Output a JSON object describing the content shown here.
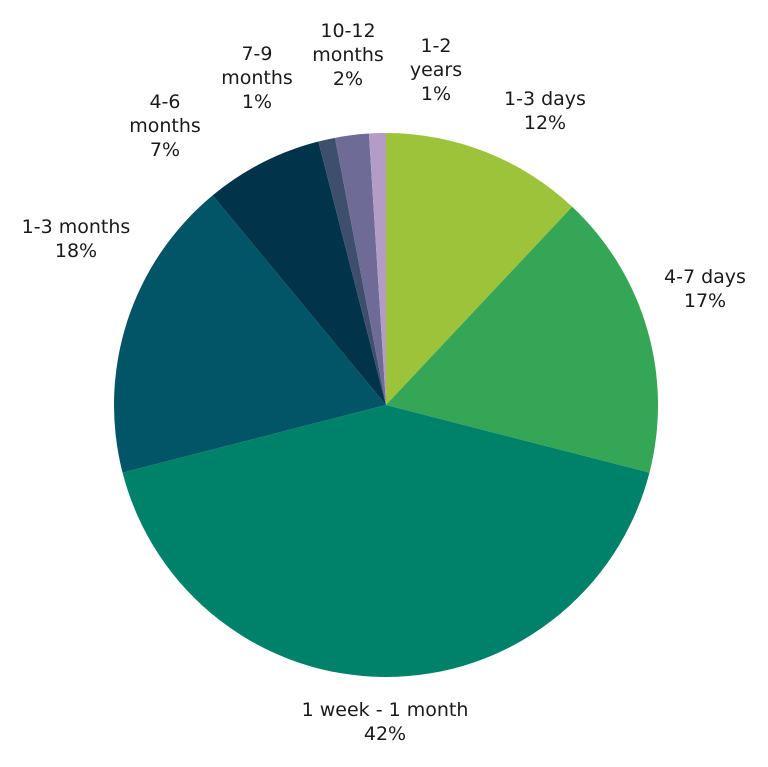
{
  "chart_data": {
    "type": "pie",
    "title": "",
    "start": "top",
    "direction": "clockwise",
    "slices": [
      {
        "label": "1-3 days",
        "label_lines": [
          "1-3 days",
          "12%"
        ],
        "value": 12,
        "display": "12%",
        "color": "#9DC33B"
      },
      {
        "label": "4-7 days",
        "label_lines": [
          "4-7 days",
          "17%"
        ],
        "value": 17,
        "display": "17%",
        "color": "#34A656"
      },
      {
        "label": "1 week - 1 month",
        "label_lines": [
          "1 week - 1 month",
          "42%"
        ],
        "value": 42,
        "display": "42%",
        "color": "#00816A"
      },
      {
        "label": "1-3 months",
        "label_lines": [
          "1-3 months",
          "18%"
        ],
        "value": 18,
        "display": "18%",
        "color": "#015566"
      },
      {
        "label": "4-6 months",
        "label_lines": [
          "4-6",
          "months",
          "7%"
        ],
        "value": 7,
        "display": "7%",
        "color": "#01334A"
      },
      {
        "label": "7-9 months",
        "label_lines": [
          "7-9",
          "months",
          "1%"
        ],
        "value": 1,
        "display": "1%",
        "color": "#3D4F6D"
      },
      {
        "label": "10-12 months",
        "label_lines": [
          "10-12",
          "months",
          "2%"
        ],
        "value": 2,
        "display": "2%",
        "color": "#6E6C97"
      },
      {
        "label": "1-2 years",
        "label_lines": [
          "1-2",
          "years",
          "1%"
        ],
        "value": 1,
        "display": "1%",
        "color": "#B39DC7"
      }
    ]
  }
}
